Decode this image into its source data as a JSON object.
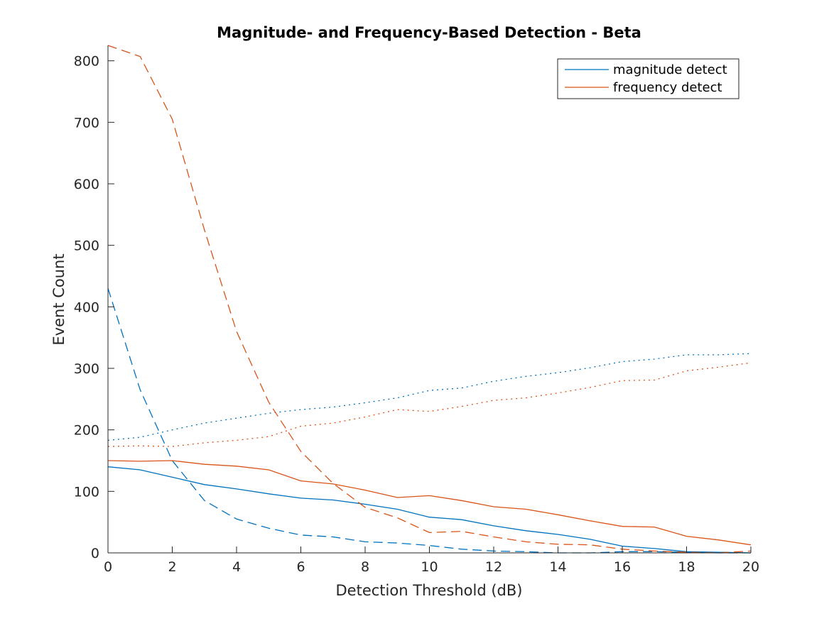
{
  "chart_data": {
    "type": "line",
    "title": "Magnitude- and Frequency-Based Detection - Beta",
    "xlabel": "Detection Threshold (dB)",
    "ylabel": "Event Count",
    "xlim": [
      0,
      20
    ],
    "ylim": [
      0,
      825
    ],
    "xticks": [
      0,
      2,
      4,
      6,
      8,
      10,
      12,
      14,
      16,
      18,
      20
    ],
    "yticks": [
      0,
      100,
      200,
      300,
      400,
      500,
      600,
      700,
      800
    ],
    "grid": false,
    "legend_position": "top-right",
    "legend": [
      {
        "label": "magnitude detect",
        "color": "#0072BD"
      },
      {
        "label": "frequency detect",
        "color": "#D95319"
      }
    ],
    "x": [
      0,
      1,
      2,
      3,
      4,
      5,
      6,
      7,
      8,
      9,
      10,
      11,
      12,
      13,
      14,
      15,
      16,
      17,
      18,
      19,
      20
    ],
    "series": [
      {
        "color": "#0072BD",
        "dash": "solid",
        "values": [
          140,
          135,
          123,
          111,
          104,
          96,
          89,
          86,
          79,
          71,
          58,
          54,
          44,
          36,
          30,
          22,
          11,
          7,
          2,
          1,
          0
        ]
      },
      {
        "color": "#0072BD",
        "dash": "dashed",
        "values": [
          430,
          265,
          150,
          85,
          55,
          40,
          29,
          26,
          18,
          16,
          12,
          6,
          3,
          2,
          0,
          0,
          2,
          2,
          1,
          0,
          0
        ]
      },
      {
        "color": "#0072BD",
        "dash": "dotted",
        "values": [
          183,
          188,
          200,
          211,
          219,
          227,
          233,
          237,
          244,
          252,
          264,
          268,
          279,
          287,
          293,
          301,
          311,
          315,
          322,
          322,
          324
        ]
      },
      {
        "color": "#D95319",
        "dash": "solid",
        "values": [
          150,
          149,
          150,
          144,
          141,
          135,
          117,
          112,
          102,
          90,
          93,
          85,
          75,
          71,
          62,
          52,
          43,
          42,
          27,
          21,
          13
        ]
      },
      {
        "color": "#D95319",
        "dash": "dashed",
        "values": [
          825,
          807,
          705,
          525,
          360,
          245,
          165,
          113,
          74,
          57,
          33,
          35,
          26,
          18,
          14,
          13,
          6,
          3,
          1,
          0,
          3
        ]
      },
      {
        "color": "#D95319",
        "dash": "dotted",
        "values": [
          173,
          174,
          173,
          179,
          183,
          189,
          206,
          211,
          221,
          233,
          230,
          238,
          248,
          252,
          260,
          269,
          280,
          281,
          296,
          302,
          309
        ]
      }
    ]
  }
}
